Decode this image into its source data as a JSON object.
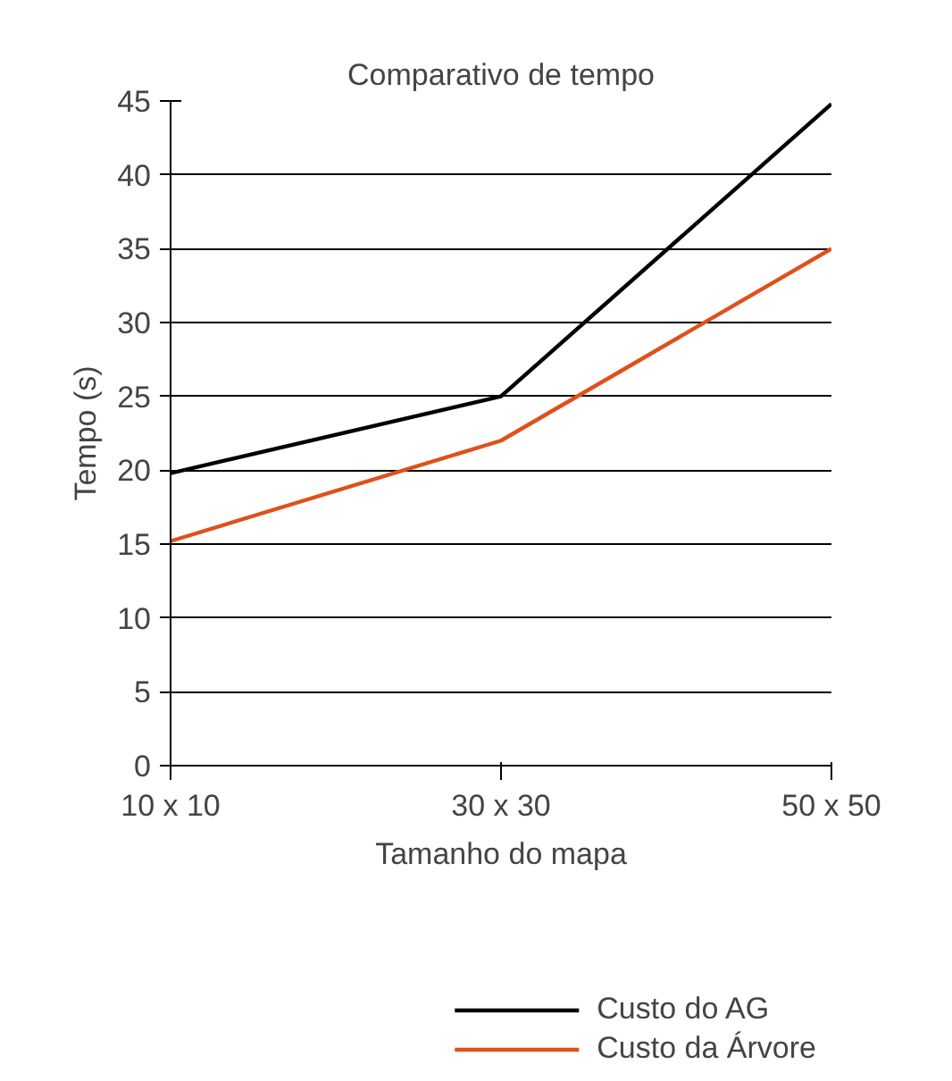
{
  "chart_data": {
    "type": "line",
    "title": "Comparativo de tempo",
    "xlabel": "Tamanho do mapa",
    "ylabel": "Tempo (s)",
    "categories": [
      "10 x 10",
      "30 x 30",
      "50 x 50"
    ],
    "series": [
      {
        "name": "Custo do AG",
        "color": "#000000",
        "values": [
          19.8,
          25,
          44.8
        ]
      },
      {
        "name": "Custo da Árvore",
        "color": "#e0501a",
        "values": [
          15.2,
          22,
          35
        ]
      }
    ],
    "ylim": [
      0,
      45
    ],
    "yticks": [
      0,
      5,
      10,
      15,
      20,
      25,
      30,
      35,
      40,
      45
    ],
    "grid": "y",
    "legend": "bottom right",
    "marker": "none",
    "line_style": "solid"
  }
}
